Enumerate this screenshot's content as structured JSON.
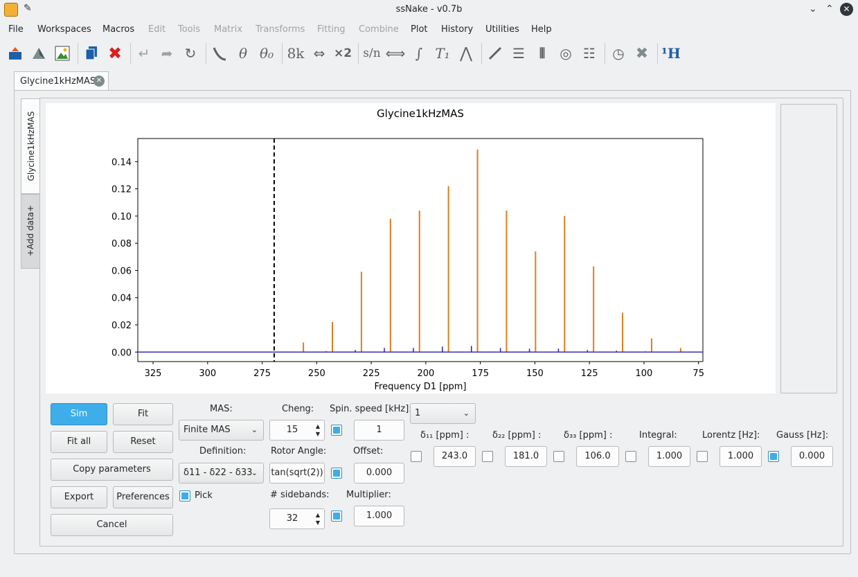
{
  "window": {
    "title": "ssNake - v0.7b"
  },
  "menu": [
    "File",
    "Workspaces",
    "Macros",
    "Edit",
    "Tools",
    "Matrix",
    "Transforms",
    "Fitting",
    "Combine",
    "Plot",
    "History",
    "Utilities",
    "Help"
  ],
  "menu_disabled": [
    false,
    false,
    false,
    true,
    true,
    true,
    true,
    true,
    true,
    false,
    false,
    false,
    false
  ],
  "toolbar": {
    "k8": "8k",
    "x2": "×2",
    "sn": "s/n",
    "theta": "θ",
    "theta0": "θ₀",
    "t1": "T₁",
    "h1": "¹H"
  },
  "workspace_tab": "Glycine1kHzMAS",
  "side_tabs": {
    "data": "Glycine1kHzMAS",
    "add": "+Add data+"
  },
  "chart_data": {
    "type": "line",
    "title": "Glycine1kHzMAS",
    "xlabel": "Frequency D1 [ppm]",
    "xlim": [
      332,
      73
    ],
    "ylim": [
      -0.007,
      0.157
    ],
    "xticks": [
      325,
      300,
      275,
      250,
      225,
      200,
      175,
      150,
      125,
      100,
      75
    ],
    "yticks": [
      0.0,
      0.02,
      0.04,
      0.06,
      0.08,
      0.1,
      0.12,
      0.14
    ],
    "ytick_labels": [
      "0.00",
      "0.02",
      "0.04",
      "0.06",
      "0.08",
      "0.10",
      "0.12",
      "0.14"
    ],
    "cursor_x": 269.5,
    "series": [
      {
        "color": "#e07b1c",
        "x": [
          256.1,
          242.8,
          229.5,
          216.2,
          202.9,
          189.6,
          176.3,
          163.0,
          149.7,
          136.4,
          123.1,
          109.8,
          96.5,
          83.2
        ],
        "values": [
          0.007,
          0.022,
          0.059,
          0.098,
          0.104,
          0.122,
          0.149,
          0.104,
          0.074,
          0.1,
          0.063,
          0.029,
          0.01,
          0.003
        ]
      },
      {
        "color": "#1f1fd6",
        "x": [
          245.6,
          232.3,
          219.0,
          205.7,
          192.4,
          179.1,
          165.8,
          152.5,
          139.2,
          125.9,
          112.6,
          99.3
        ],
        "values": [
          0.0006,
          0.0015,
          0.003,
          0.003,
          0.004,
          0.0045,
          0.003,
          0.0025,
          0.0025,
          0.0015,
          0.001,
          0.0005
        ]
      }
    ]
  },
  "buttons": {
    "sim": "Sim",
    "fit": "Fit",
    "fit_all": "Fit all",
    "reset": "Reset",
    "copy": "Copy parameters",
    "export": "Export",
    "prefs": "Preferences",
    "cancel": "Cancel"
  },
  "params": {
    "mas_label": "MAS:",
    "mas_value": "Finite MAS",
    "def_label": "Definition:",
    "def_value": "δ11 - δ22 - δ33",
    "pick": "Pick",
    "cheng_label": "Cheng:",
    "cheng_value": "15",
    "rotor_label": "Rotor Angle:",
    "rotor_value": "tan(sqrt(2))",
    "sidebands_label": "# sidebands:",
    "sidebands_value": "32",
    "spin_label": "Spin. speed [kHz]:",
    "spin_value": "1",
    "offset_label": "Offset:",
    "offset_value": "0.000",
    "mult_label": "Multiplier:",
    "mult_value": "1.000",
    "sites_value": "1",
    "d11_label": "δ₁₁ [ppm] :",
    "d11_value": "243.0",
    "d22_label": "δ₂₂ [ppm] :",
    "d22_value": "181.0",
    "d33_label": "δ₃₃ [ppm] :",
    "d33_value": "106.0",
    "integral_label": "Integral:",
    "integral_value": "1.000",
    "lorentz_label": "Lorentz [Hz]:",
    "lorentz_value": "1.000",
    "gauss_label": "Gauss [Hz]:",
    "gauss_value": "0.000"
  }
}
